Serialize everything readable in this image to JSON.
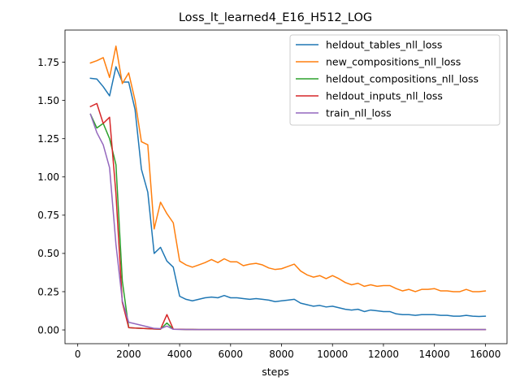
{
  "chart_data": {
    "type": "line",
    "title": "Loss_lt_learned4_E16_H512_LOG",
    "xlabel": "steps",
    "ylabel": "",
    "xlim": [
      -500,
      16850
    ],
    "ylim": [
      -0.09,
      1.96
    ],
    "xticks": [
      0,
      2000,
      4000,
      6000,
      8000,
      10000,
      12000,
      14000,
      16000
    ],
    "yticks": [
      0.0,
      0.25,
      0.5,
      0.75,
      1.0,
      1.25,
      1.5,
      1.75
    ],
    "xtick_labels": [
      "0",
      "2000",
      "4000",
      "6000",
      "8000",
      "10000",
      "12000",
      "14000",
      "16000"
    ],
    "ytick_labels": [
      "0.00",
      "0.25",
      "0.50",
      "0.75",
      "1.00",
      "1.25",
      "1.50",
      "1.75"
    ],
    "grid": false,
    "legend_position": "top-right",
    "x": [
      500,
      750,
      1000,
      1250,
      1500,
      1750,
      2000,
      2250,
      2500,
      2750,
      3000,
      3250,
      3500,
      3750,
      4000,
      4250,
      4500,
      4750,
      5000,
      5250,
      5500,
      5750,
      6000,
      6250,
      6500,
      6750,
      7000,
      7250,
      7500,
      7750,
      8000,
      8250,
      8500,
      8750,
      9000,
      9250,
      9500,
      9750,
      10000,
      10250,
      10500,
      10750,
      11000,
      11250,
      11500,
      11750,
      12000,
      12250,
      12500,
      12750,
      13000,
      13250,
      13500,
      13750,
      14000,
      14250,
      14500,
      14750,
      15000,
      15250,
      15500,
      15750,
      16000
    ],
    "series": [
      {
        "name": "heldout_tables_nll_loss",
        "color": "#1f77b4",
        "values": [
          1.645,
          1.64,
          1.59,
          1.53,
          1.72,
          1.62,
          1.62,
          1.44,
          1.05,
          0.9,
          0.5,
          0.54,
          0.45,
          0.41,
          0.22,
          0.2,
          0.19,
          0.2,
          0.21,
          0.215,
          0.21,
          0.225,
          0.21,
          0.21,
          0.205,
          0.2,
          0.205,
          0.2,
          0.195,
          0.185,
          0.19,
          0.195,
          0.2,
          0.175,
          0.165,
          0.155,
          0.16,
          0.15,
          0.155,
          0.145,
          0.135,
          0.13,
          0.135,
          0.12,
          0.13,
          0.125,
          0.12,
          0.12,
          0.105,
          0.1,
          0.1,
          0.095,
          0.1,
          0.1,
          0.1,
          0.095,
          0.095,
          0.09,
          0.09,
          0.095,
          0.09,
          0.088,
          0.09
        ]
      },
      {
        "name": "new_compositions_nll_loss",
        "color": "#ff7f0e",
        "values": [
          1.745,
          1.76,
          1.78,
          1.65,
          1.855,
          1.61,
          1.68,
          1.5,
          1.23,
          1.21,
          0.66,
          0.835,
          0.76,
          0.7,
          0.45,
          0.425,
          0.41,
          0.425,
          0.44,
          0.46,
          0.44,
          0.465,
          0.445,
          0.445,
          0.42,
          0.43,
          0.435,
          0.425,
          0.405,
          0.395,
          0.4,
          0.415,
          0.43,
          0.385,
          0.36,
          0.345,
          0.355,
          0.335,
          0.355,
          0.335,
          0.31,
          0.295,
          0.305,
          0.285,
          0.295,
          0.285,
          0.29,
          0.29,
          0.27,
          0.255,
          0.265,
          0.25,
          0.265,
          0.265,
          0.27,
          0.255,
          0.255,
          0.25,
          0.25,
          0.265,
          0.25,
          0.25,
          0.255
        ]
      },
      {
        "name": "heldout_compositions_nll_loss",
        "color": "#2ca02c",
        "values": [
          1.41,
          1.32,
          1.35,
          1.25,
          1.08,
          0.32,
          0.015,
          0.012,
          0.01,
          0.008,
          0.006,
          0.005,
          0.045,
          0.005,
          0.004,
          0.003,
          0.003,
          0.002,
          0.002,
          0.002,
          0.002,
          0.002,
          0.002,
          0.002,
          0.002,
          0.002,
          0.002,
          0.002,
          0.002,
          0.002,
          0.002,
          0.002,
          0.002,
          0.002,
          0.002,
          0.002,
          0.002,
          0.002,
          0.002,
          0.002,
          0.002,
          0.002,
          0.002,
          0.002,
          0.002,
          0.002,
          0.002,
          0.002,
          0.002,
          0.002,
          0.002,
          0.002,
          0.002,
          0.002,
          0.002,
          0.002,
          0.002,
          0.002,
          0.002,
          0.002,
          0.002,
          0.002,
          0.002
        ]
      },
      {
        "name": "heldout_inputs_nll_loss",
        "color": "#d62728",
        "values": [
          1.46,
          1.48,
          1.35,
          1.39,
          0.89,
          0.18,
          0.015,
          0.012,
          0.01,
          0.008,
          0.006,
          0.005,
          0.1,
          0.005,
          0.004,
          0.003,
          0.003,
          0.002,
          0.002,
          0.002,
          0.002,
          0.002,
          0.002,
          0.002,
          0.002,
          0.002,
          0.002,
          0.002,
          0.002,
          0.002,
          0.002,
          0.002,
          0.002,
          0.002,
          0.002,
          0.002,
          0.002,
          0.002,
          0.002,
          0.002,
          0.002,
          0.002,
          0.002,
          0.002,
          0.002,
          0.002,
          0.002,
          0.002,
          0.002,
          0.002,
          0.002,
          0.002,
          0.002,
          0.002,
          0.002,
          0.002,
          0.002,
          0.002,
          0.002,
          0.002,
          0.002,
          0.002,
          0.002
        ]
      },
      {
        "name": "train_nll_loss",
        "color": "#9467bd",
        "values": [
          1.41,
          1.29,
          1.21,
          1.06,
          0.56,
          0.19,
          0.05,
          0.04,
          0.03,
          0.02,
          0.01,
          0.008,
          0.025,
          0.004,
          0.003,
          0.003,
          0.002,
          0.002,
          0.002,
          0.002,
          0.002,
          0.002,
          0.002,
          0.002,
          0.002,
          0.002,
          0.002,
          0.002,
          0.002,
          0.002,
          0.002,
          0.002,
          0.002,
          0.002,
          0.002,
          0.002,
          0.002,
          0.002,
          0.002,
          0.002,
          0.002,
          0.002,
          0.002,
          0.002,
          0.002,
          0.002,
          0.002,
          0.002,
          0.002,
          0.002,
          0.002,
          0.002,
          0.002,
          0.002,
          0.002,
          0.002,
          0.002,
          0.002,
          0.002,
          0.002,
          0.002,
          0.002,
          0.002
        ]
      }
    ]
  }
}
